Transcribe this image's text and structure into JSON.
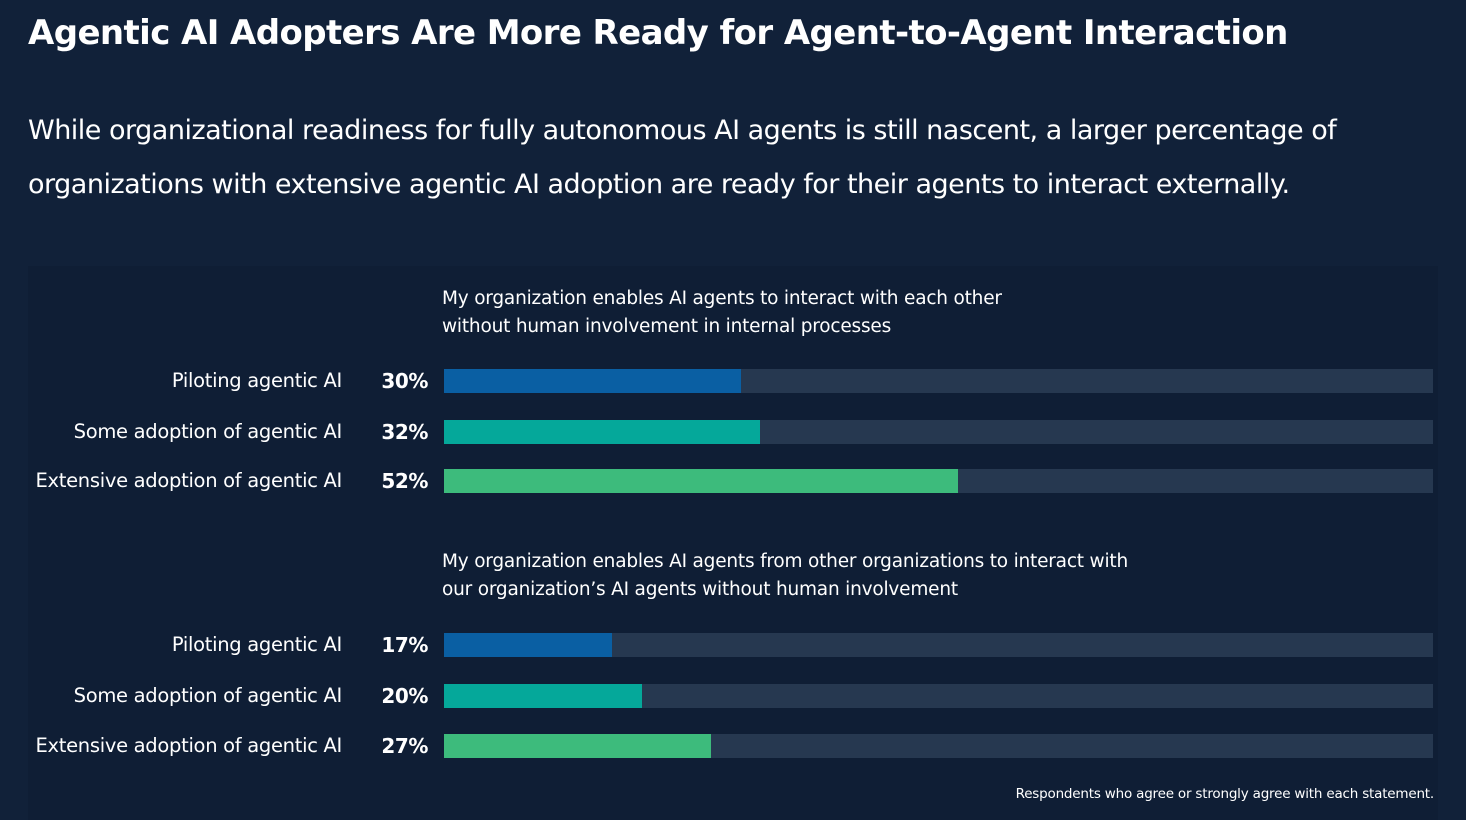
{
  "title": "Agentic AI Adopters Are More Ready for Agent-to-Agent Interaction",
  "subtitle": "While organizational readiness for fully autonomous AI agents is still nascent, a larger percentage of organizations with extensive agentic AI adoption are ready for their agents to interact externally.",
  "footnote": "Respondents who agree or strongly agree with each statement.",
  "colors": {
    "background": "#112139",
    "panel": "#0f1e35",
    "track": "#263850",
    "piloting": "#0a5fa3",
    "some": "#05a89a",
    "extensive": "#3dbb7c"
  },
  "chart_data": [
    {
      "type": "bar",
      "orientation": "horizontal",
      "title": "My organization enables AI agents to interact with each other without human involvement in internal processes",
      "categories": [
        "Piloting agentic AI",
        "Some adoption of agentic AI",
        "Extensive adoption of agentic AI"
      ],
      "values": [
        30,
        32,
        52
      ],
      "value_labels": [
        "30%",
        "32%",
        "52%"
      ],
      "unit": "%",
      "xlim": [
        0,
        100
      ]
    },
    {
      "type": "bar",
      "orientation": "horizontal",
      "title": "My organization enables AI agents from other organizations to interact with our organization’s AI agents without human involvement",
      "categories": [
        "Piloting agentic AI",
        "Some adoption of agentic AI",
        "Extensive adoption of agentic AI"
      ],
      "values": [
        17,
        20,
        27
      ],
      "value_labels": [
        "17%",
        "20%",
        "27%"
      ],
      "unit": "%",
      "xlim": [
        0,
        100
      ]
    }
  ]
}
